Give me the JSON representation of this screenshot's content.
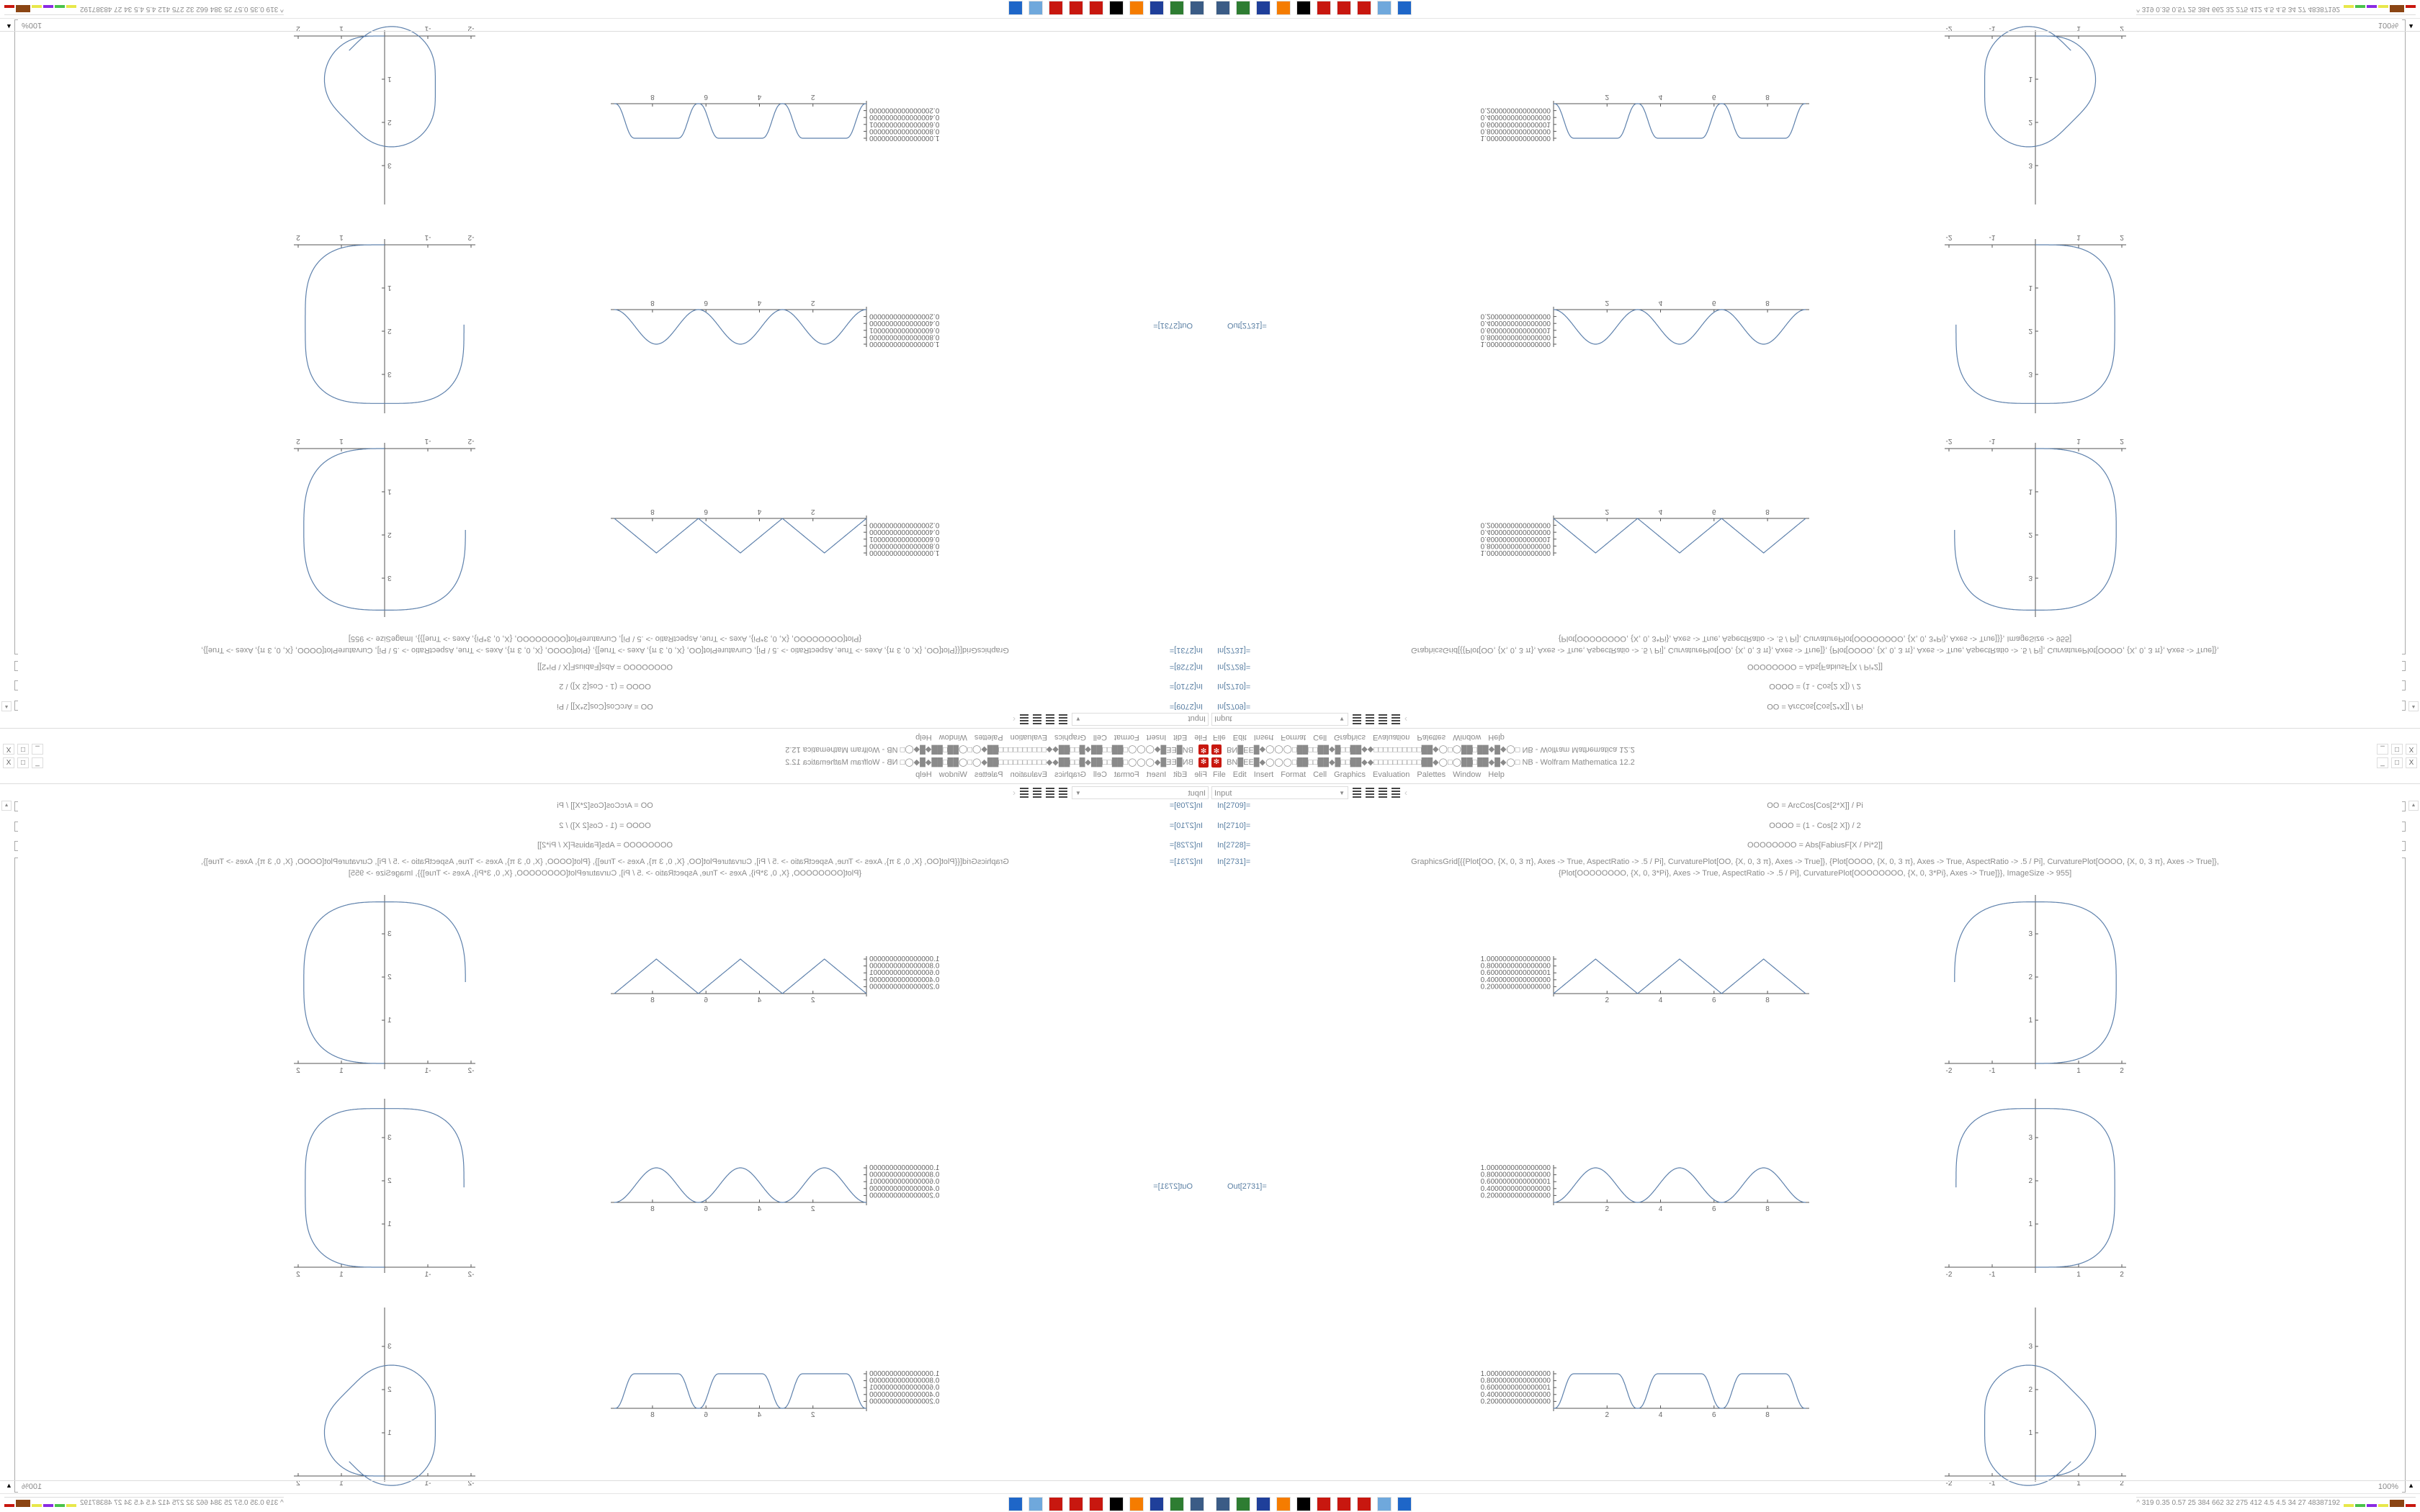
{
  "window": {
    "title": "BN█EE█◆◯◯◯□██□□██◆█□□██◆◆□□□□□□□□□□██◆◯□◯██□██◆█◆◯□ NB - Wolfram Mathematica 12.2",
    "buttons": {
      "minimize": "_",
      "restore": "□",
      "close": "X"
    }
  },
  "menu": [
    "File",
    "Edit",
    "Insert",
    "Format",
    "Cell",
    "Graphics",
    "Evaluation",
    "Palettes",
    "Window",
    "Help"
  ],
  "toolbar": {
    "style_value": "Input"
  },
  "cells": [
    {
      "label": "In[2709]=",
      "code": "OO = ArcCos[Cos[2*X]] / Pi"
    },
    {
      "label": "In[2710]=",
      "code": "OOOO = (1 - Cos[2 X]) / 2"
    },
    {
      "label": "In[2728]=",
      "code": "OOOOOOOO = Abs[FabiusF[X / Pi*2]]"
    },
    {
      "label": "In[2731]=",
      "code": "GraphicsGrid[{{Plot[OO, {X, 0, 3 π}, Axes -> True, AspectRatio -> .5 / Pi], CurvaturePlot[OO, {X, 0, 3 π}, Axes -> True]}, {Plot[OOOO, {X, 0, 3 π}, Axes -> True, AspectRatio -> .5 / Pi], CurvaturePlot[OOOO, {X, 0, 3 π}, Axes -> True]},",
      "code2": "{Plot[OOOOOOOO, {X, 0, 3*Pi}, Axes -> True, AspectRatio -> .5 / Pi], CurvaturePlot[OOOOOOOO, {X, 0, 3*Pi}, Axes -> True]}}, ImageSize -> 955]"
    }
  ],
  "output": {
    "label": "Out[2731]="
  },
  "status": {
    "zoom": "100%"
  },
  "taskbar": {
    "icons": [
      {
        "name": "settings-monitor-icon",
        "color": "#3b5c86"
      },
      {
        "name": "terminal-icon",
        "color": "#2e7d32"
      },
      {
        "name": "floppy-64-icon",
        "color": "#1f3f9a"
      },
      {
        "name": "firefox-icon",
        "color": "#f57c00"
      },
      {
        "name": "inkscape-icon",
        "color": "#000000"
      },
      {
        "name": "mathematica-icon",
        "color": "#c8170f"
      },
      {
        "name": "mathematica-icon",
        "color": "#c8170f"
      },
      {
        "name": "mathematica-icon",
        "color": "#c8170f"
      },
      {
        "name": "calculator-icon",
        "color": "#6fa8dc"
      },
      {
        "name": "window-icon",
        "color": "#1e66c8"
      }
    ],
    "tray_text": "^ 319 0.35 0.57 25 384 662 32 275 412 4.5 4.5 34 27 48387192",
    "tray_colors": [
      "#e8e84a",
      "#4ac24a",
      "#8a2be2",
      "#e8e84a",
      "#8b4513",
      "#c8170f"
    ]
  },
  "chart_data": [
    {
      "type": "line",
      "function": "ArcCos[Cos[2x]]/Pi",
      "x_range": [
        0,
        9.42477796
      ],
      "ylim": [
        0,
        1
      ],
      "x_ticks": [
        "2",
        "4",
        "6",
        "8"
      ],
      "y_ticks": [
        "0.2000000000000000",
        "0.4000000000000000",
        "0.6000000000000001",
        "0.8000000000000000",
        "1.0000000000000000"
      ]
    },
    {
      "type": "line",
      "function": "CurvaturePlot of ArcCos[Cos[2x]]/Pi",
      "xlim": [
        -2,
        2
      ],
      "ylim": [
        0,
        3.8
      ],
      "x_ticks": [
        "-2",
        "-1",
        "1",
        "2"
      ],
      "y_ticks": [
        "1",
        "2",
        "3"
      ]
    },
    {
      "type": "line",
      "function": "(1-Cos[2x])/2",
      "x_range": [
        0,
        9.42477796
      ],
      "ylim": [
        0,
        1
      ],
      "x_ticks": [
        "2",
        "4",
        "6",
        "8"
      ],
      "y_ticks": [
        "0.2000000000000000",
        "0.4000000000000000",
        "0.6000000000000001",
        "0.8000000000000000",
        "1.0000000000000000"
      ]
    },
    {
      "type": "line",
      "function": "CurvaturePlot of (1-Cos[2x])/2",
      "xlim": [
        -2,
        2
      ],
      "ylim": [
        0,
        3.8
      ],
      "x_ticks": [
        "-2",
        "-1",
        "1",
        "2"
      ],
      "y_ticks": [
        "1",
        "2",
        "3"
      ]
    },
    {
      "type": "line",
      "function": "Abs[FabiusF[2x/Pi]]",
      "x_range": [
        0,
        9.42477796
      ],
      "ylim": [
        0,
        1
      ],
      "x_ticks": [
        "2",
        "4",
        "6",
        "8"
      ],
      "y_ticks": [
        "0.2000000000000000",
        "0.4000000000000000",
        "0.6000000000000001",
        "0.8000000000000000",
        "1.0000000000000000"
      ]
    },
    {
      "type": "line",
      "function": "CurvaturePlot of Abs[FabiusF[2x/Pi]]",
      "xlim": [
        -2,
        2
      ],
      "ylim": [
        0,
        3.8
      ],
      "x_ticks": [
        "-2",
        "-1",
        "1",
        "2"
      ],
      "y_ticks": [
        "1",
        "2",
        "3"
      ]
    }
  ],
  "colors": {
    "curve": "#5e81ac",
    "in_label": "#5a7fa3",
    "text": "#8a8a8a"
  }
}
